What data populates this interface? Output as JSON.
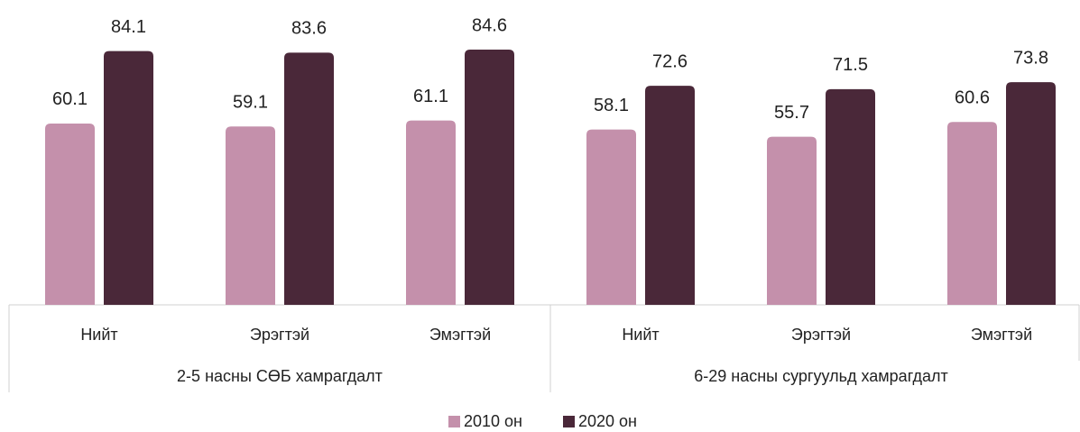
{
  "chart_data": {
    "type": "bar",
    "categories": [
      "Нийт",
      "Эрэгтэй",
      "Эмэгтэй",
      "Нийт",
      "Эрэгтэй",
      "Эмэгтэй"
    ],
    "group_labels": [
      "2-5 насны СӨБ хамрагдалт",
      "6-29 насны сургуульд хамрагдалт"
    ],
    "series": [
      {
        "name": "2010 он",
        "color": "#c490ab",
        "values": [
          60.1,
          59.1,
          61.1,
          58.1,
          55.7,
          60.6
        ]
      },
      {
        "name": "2020 он",
        "color": "#4a2839",
        "values": [
          84.1,
          83.6,
          84.6,
          72.6,
          71.5,
          73.8
        ]
      }
    ],
    "legend": "bottom"
  }
}
